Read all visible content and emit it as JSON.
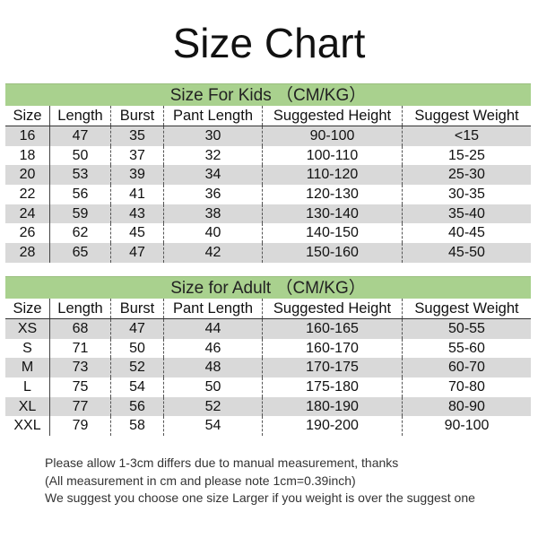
{
  "title": "Size Chart",
  "kids": {
    "banner": "Size For Kids （CM/KG）",
    "headers": [
      "Size",
      "Length",
      "Burst",
      "Pant Length",
      "Suggested Height",
      "Suggest Weight"
    ],
    "rows": [
      [
        "16",
        "47",
        "35",
        "30",
        "90-100",
        "<15"
      ],
      [
        "18",
        "50",
        "37",
        "32",
        "100-110",
        "15-25"
      ],
      [
        "20",
        "53",
        "39",
        "34",
        "110-120",
        "25-30"
      ],
      [
        "22",
        "56",
        "41",
        "36",
        "120-130",
        "30-35"
      ],
      [
        "24",
        "59",
        "43",
        "38",
        "130-140",
        "35-40"
      ],
      [
        "26",
        "62",
        "45",
        "40",
        "140-150",
        "40-45"
      ],
      [
        "28",
        "65",
        "47",
        "42",
        "150-160",
        "45-50"
      ]
    ]
  },
  "adult": {
    "banner": "Size for Adult （CM/KG）",
    "headers": [
      "Size",
      "Length",
      "Burst",
      "Pant Length",
      "Suggested Height",
      "Suggest Weight"
    ],
    "rows": [
      [
        "XS",
        "68",
        "47",
        "44",
        "160-165",
        "50-55"
      ],
      [
        "S",
        "71",
        "50",
        "46",
        "160-170",
        "55-60"
      ],
      [
        "M",
        "73",
        "52",
        "48",
        "170-175",
        "60-70"
      ],
      [
        "L",
        "75",
        "54",
        "50",
        "175-180",
        "70-80"
      ],
      [
        "XL",
        "77",
        "56",
        "52",
        "180-190",
        "80-90"
      ],
      [
        "XXL",
        "79",
        "58",
        "54",
        "190-200",
        "90-100"
      ]
    ]
  },
  "notes": [
    "Please allow 1-3cm differs due to manual measurement, thanks",
    "(All measurement in cm and please note 1cm=0.39inch)",
    "We suggest you choose one size Larger if you weight is over the suggest one"
  ],
  "colors": {
    "banner": "#a9d18e",
    "stripe": "#d9d9d9"
  }
}
